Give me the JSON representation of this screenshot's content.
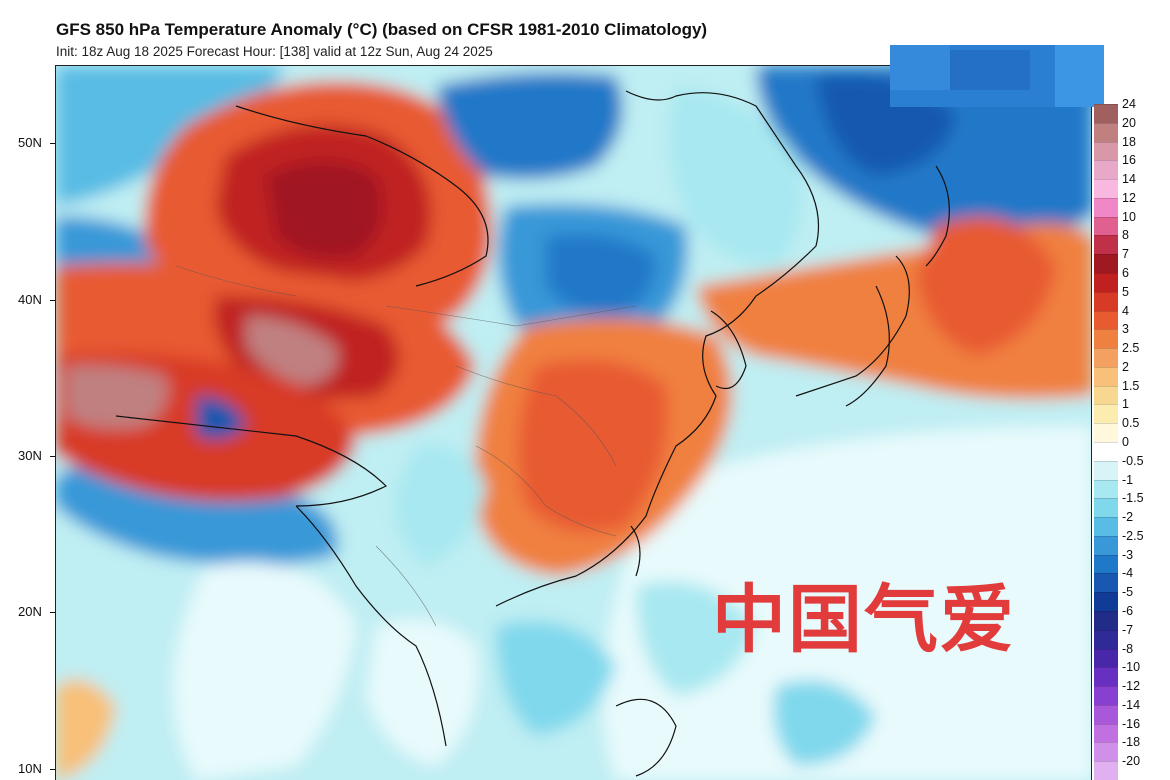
{
  "header": {
    "title": "GFS 850 hPa Temperature Anomaly (°C) (based on CFSR 1981-2010 Climatology)",
    "subtitle": "Init: 18z Aug 18 2025   Forecast Hour: [138]   valid at 12z Sun, Aug 24 2025"
  },
  "latitude_labels": [
    "50N",
    "40N",
    "30N",
    "20N",
    "10N"
  ],
  "colorbar": {
    "labels": [
      "24",
      "20",
      "18",
      "16",
      "14",
      "12",
      "10",
      "8",
      "7",
      "6",
      "5",
      "4",
      "3",
      "2.5",
      "2",
      "1.5",
      "1",
      "0.5",
      "0",
      "-0.5",
      "-1",
      "-1.5",
      "-2",
      "-2.5",
      "-3",
      "-4",
      "-5",
      "-6",
      "-7",
      "-8",
      "-10",
      "-12",
      "-14",
      "-16",
      "-18",
      "-20"
    ],
    "colors": [
      "#a06060",
      "#c08080",
      "#d898a8",
      "#e8a8c8",
      "#f8b8e0",
      "#f088c8",
      "#e06090",
      "#c03048",
      "#a01820",
      "#c02020",
      "#d83a28",
      "#e85a30",
      "#f08040",
      "#f4a060",
      "#f8c078",
      "#f8d890",
      "#fcecb0",
      "#fff8dc",
      "#ffffff",
      "#d8f4f8",
      "#a8e8f0",
      "#80d8ec",
      "#58bce4",
      "#3898d8",
      "#2078c8",
      "#1858b0",
      "#103c98",
      "#202c88",
      "#302a98",
      "#4828a8",
      "#6830c0",
      "#8840d0",
      "#a858d8",
      "#c070e0",
      "#d090e8",
      "#e0b0f0"
    ]
  },
  "watermark": "中国气爱"
}
